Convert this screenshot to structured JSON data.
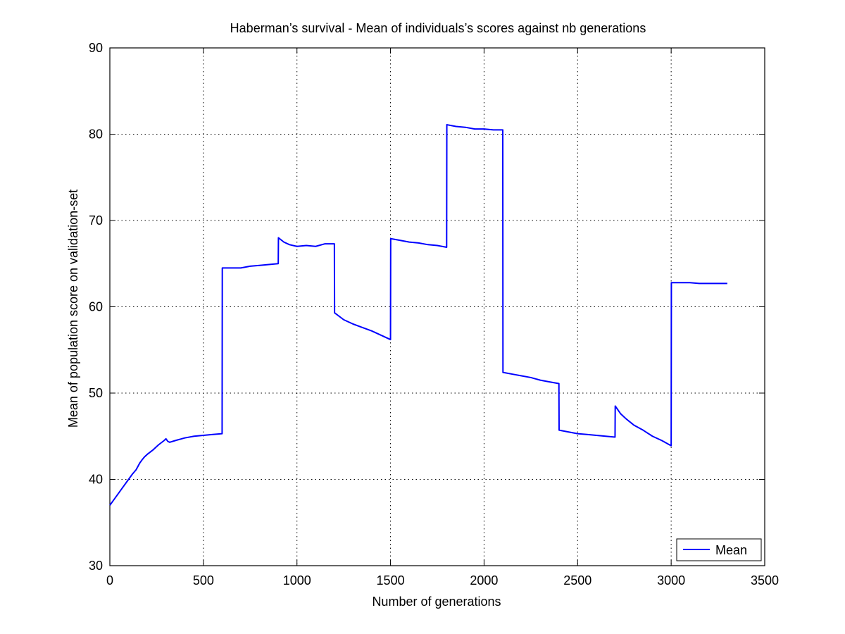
{
  "chart_data": {
    "type": "line",
    "title": "Haberman’s survival - Mean of individuals’s scores against nb generations",
    "xlabel": "Number of generations",
    "ylabel": "Mean of population score on validation-set",
    "xlim": [
      0,
      3500
    ],
    "ylim": [
      30,
      90
    ],
    "xticks": [
      0,
      500,
      1000,
      1500,
      2000,
      2500,
      3000,
      3500
    ],
    "yticks": [
      30,
      40,
      50,
      60,
      70,
      80,
      90
    ],
    "grid": true,
    "legend_position": "bottom-right",
    "series": [
      {
        "name": "Mean",
        "color": "#0000ff",
        "x": [
          0,
          20,
          40,
          60,
          80,
          100,
          120,
          140,
          150,
          160,
          170,
          185,
          200,
          230,
          260,
          290,
          300,
          310,
          320,
          350,
          400,
          450,
          500,
          550,
          600,
          601,
          650,
          700,
          750,
          800,
          850,
          900,
          901,
          930,
          960,
          1000,
          1050,
          1100,
          1150,
          1200,
          1201,
          1250,
          1300,
          1350,
          1400,
          1450,
          1500,
          1501,
          1550,
          1600,
          1650,
          1700,
          1750,
          1800,
          1801,
          1850,
          1900,
          1950,
          2000,
          2050,
          2100,
          2101,
          2150,
          2200,
          2250,
          2300,
          2350,
          2400,
          2401,
          2450,
          2500,
          2550,
          2600,
          2650,
          2700,
          2701,
          2730,
          2760,
          2800,
          2850,
          2900,
          2950,
          3000,
          3001,
          3050,
          3100,
          3150,
          3200,
          3250,
          3300
        ],
        "y": [
          37.0,
          37.6,
          38.2,
          38.8,
          39.4,
          40.0,
          40.6,
          41.1,
          41.5,
          41.9,
          42.2,
          42.6,
          42.9,
          43.4,
          44.0,
          44.5,
          44.7,
          44.4,
          44.3,
          44.5,
          44.8,
          45.0,
          45.1,
          45.2,
          45.3,
          64.5,
          64.5,
          64.5,
          64.7,
          64.8,
          64.9,
          65.0,
          68.0,
          67.5,
          67.2,
          67.0,
          67.1,
          67.0,
          67.3,
          67.3,
          59.3,
          58.5,
          58.0,
          57.6,
          57.2,
          56.7,
          56.2,
          67.9,
          67.7,
          67.5,
          67.4,
          67.2,
          67.1,
          66.9,
          81.1,
          80.9,
          80.8,
          80.6,
          80.6,
          80.5,
          80.5,
          52.4,
          52.2,
          52.0,
          51.8,
          51.5,
          51.3,
          51.1,
          45.7,
          45.5,
          45.3,
          45.2,
          45.1,
          45.0,
          44.9,
          48.5,
          47.6,
          47.0,
          46.3,
          45.7,
          45.0,
          44.5,
          43.9,
          62.8,
          62.8,
          62.8,
          62.7,
          62.7,
          62.7,
          62.7
        ]
      }
    ]
  }
}
